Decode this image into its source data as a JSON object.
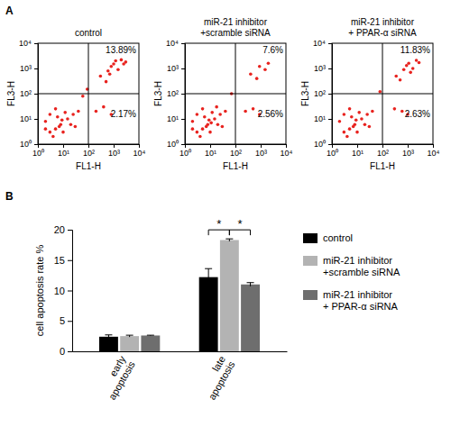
{
  "chart_data": [
    {
      "type": "scatter",
      "panel": "A",
      "title": "control",
      "xlabel": "FL1-H",
      "ylabel": "FL3-H",
      "log": true,
      "xlim": [
        1,
        10000
      ],
      "ylim": [
        1,
        10000
      ],
      "xticks": [
        {
          "value": 1,
          "label": "10⁰"
        },
        {
          "value": 10,
          "label": "10¹"
        },
        {
          "value": 100,
          "label": "10²"
        },
        {
          "value": 1000,
          "label": "10³"
        },
        {
          "value": 10000,
          "label": "10⁴"
        }
      ],
      "yticks": [
        {
          "value": 1,
          "label": "10⁰"
        },
        {
          "value": 10,
          "label": "10¹"
        },
        {
          "value": 100,
          "label": "10²"
        },
        {
          "value": 1000,
          "label": "10³"
        },
        {
          "value": 10000,
          "label": "10⁴"
        }
      ],
      "color": "#e8231f",
      "x": [
        3,
        5,
        8,
        2,
        10,
        15,
        6,
        4,
        20,
        12,
        7,
        25,
        3,
        9,
        30,
        5,
        2,
        40,
        200,
        400,
        800,
        60,
        90,
        300,
        600,
        1000,
        1500,
        2000,
        800,
        1200,
        2500,
        500,
        3000,
        700
      ],
      "values": [
        3,
        4,
        6,
        8,
        3,
        10,
        12,
        2,
        6,
        18,
        5,
        15,
        15,
        9,
        5,
        25,
        4,
        20,
        20,
        30,
        15,
        80,
        150,
        500,
        800,
        1500,
        900,
        2200,
        1200,
        2000,
        1500,
        300,
        1800,
        600
      ],
      "quadrant": {
        "x": 100,
        "y": 100
      },
      "annotations": [
        {
          "position": "upper-right",
          "value": 13.89,
          "label": "13.89%"
        },
        {
          "position": "lower-right",
          "value": 2.17,
          "label": "2.17%"
        }
      ]
    },
    {
      "type": "scatter",
      "title": "miR-21 inhibitor\n+scramble siRNA",
      "xlabel": "FL1-H",
      "ylabel": "FL3-H",
      "log": true,
      "xlim": [
        1,
        10000
      ],
      "ylim": [
        1,
        10000
      ],
      "xticks": [
        {
          "value": 1,
          "label": "10⁰"
        },
        {
          "value": 10,
          "label": "10¹"
        },
        {
          "value": 100,
          "label": "10²"
        },
        {
          "value": 1000,
          "label": "10³"
        },
        {
          "value": 10000,
          "label": "10⁴"
        }
      ],
      "yticks": [
        {
          "value": 1,
          "label": "10⁰"
        },
        {
          "value": 10,
          "label": "10¹"
        },
        {
          "value": 100,
          "label": "10²"
        },
        {
          "value": 1000,
          "label": "10³"
        },
        {
          "value": 10000,
          "label": "10⁴"
        }
      ],
      "color": "#e8231f",
      "x": [
        3,
        5,
        8,
        2,
        10,
        15,
        6,
        4,
        20,
        12,
        7,
        25,
        3,
        9,
        30,
        5,
        2,
        40,
        18,
        11,
        250,
        500,
        900,
        70,
        400,
        900,
        1500,
        700,
        2000
      ],
      "values": [
        3,
        4,
        6,
        8,
        3,
        10,
        12,
        2,
        6,
        18,
        5,
        15,
        15,
        9,
        5,
        25,
        4,
        20,
        30,
        7,
        20,
        25,
        15,
        100,
        600,
        1200,
        900,
        400,
        1600
      ],
      "quadrant": {
        "x": 100,
        "y": 100
      },
      "annotations": [
        {
          "position": "upper-right",
          "value": 7.6,
          "label": "7.6%"
        },
        {
          "position": "lower-right",
          "value": 2.56,
          "label": "2.56%"
        }
      ]
    },
    {
      "type": "scatter",
      "title": "miR-21 inhibitor\n+ PPAR-α siRNA",
      "xlabel": "FL1-H",
      "ylabel": "FL3-H",
      "log": true,
      "xlim": [
        1,
        10000
      ],
      "ylim": [
        1,
        10000
      ],
      "xticks": [
        {
          "value": 1,
          "label": "10⁰"
        },
        {
          "value": 10,
          "label": "10¹"
        },
        {
          "value": 100,
          "label": "10²"
        },
        {
          "value": 1000,
          "label": "10³"
        },
        {
          "value": 10000,
          "label": "10⁴"
        }
      ],
      "yticks": [
        {
          "value": 1,
          "label": "10⁰"
        },
        {
          "value": 10,
          "label": "10¹"
        },
        {
          "value": 100,
          "label": "10²"
        },
        {
          "value": 1000,
          "label": "10³"
        },
        {
          "value": 10000,
          "label": "10⁴"
        }
      ],
      "color": "#e8231f",
      "x": [
        3,
        5,
        8,
        2,
        10,
        15,
        6,
        4,
        20,
        12,
        7,
        25,
        3,
        9,
        30,
        5,
        40,
        300,
        600,
        1000,
        80,
        350,
        700,
        1100,
        1600,
        2200,
        900,
        1300,
        500,
        2800
      ],
      "values": [
        3,
        4,
        6,
        8,
        3,
        10,
        12,
        2,
        6,
        18,
        5,
        15,
        15,
        9,
        5,
        25,
        20,
        25,
        20,
        15,
        120,
        500,
        900,
        1600,
        1000,
        2100,
        1300,
        700,
        350,
        1700
      ],
      "quadrant": {
        "x": 100,
        "y": 100
      },
      "annotations": [
        {
          "position": "upper-right",
          "value": 11.83,
          "label": "11.83%"
        },
        {
          "position": "lower-right",
          "value": 2.63,
          "label": "2.63%"
        }
      ]
    },
    {
      "type": "bar",
      "panel": "B",
      "ylabel": "cell apoptosis rate %",
      "categories": [
        "early apoptosis",
        "late apoptosis"
      ],
      "ylim": [
        0,
        20
      ],
      "yticks": [
        0,
        5,
        10,
        15,
        20
      ],
      "legend": "right",
      "series": [
        {
          "name": "control",
          "color": "#000000",
          "values": [
            2.4,
            12.2
          ],
          "errors": [
            0.3,
            1.4
          ]
        },
        {
          "name": "miR-21 inhibitor\n+scramble siRNA",
          "color": "#b3b3b3",
          "values": [
            2.5,
            18.3
          ],
          "errors": [
            0.15,
            0.2
          ]
        },
        {
          "name": "miR-21 inhibitor\n+ PPAR-α siRNA",
          "color": "#6e6e6e",
          "values": [
            2.6,
            11.0
          ],
          "errors": [
            0.05,
            0.3
          ]
        }
      ],
      "significance": [
        {
          "category": 1,
          "series": [
            0,
            1
          ],
          "label": "*"
        },
        {
          "category": 1,
          "series": [
            1,
            2
          ],
          "label": "*"
        }
      ]
    }
  ]
}
